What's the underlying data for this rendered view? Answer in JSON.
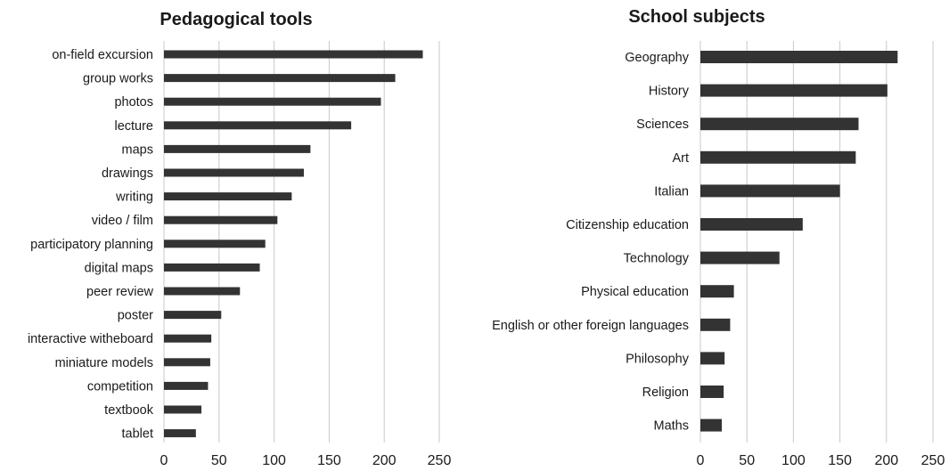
{
  "chart_data": [
    {
      "type": "bar",
      "orientation": "horizontal",
      "title": "Pedagogical tools",
      "categories": [
        "on-field excursion",
        "group works",
        "photos",
        "lecture",
        "maps",
        "drawings",
        "writing",
        "video / film",
        "participatory planning",
        "digital maps",
        "peer review",
        "poster",
        "interactive witheboard",
        "miniature models",
        "competition",
        "textbook",
        "tablet"
      ],
      "values": [
        235,
        210,
        197,
        170,
        133,
        127,
        116,
        103,
        92,
        87,
        69,
        52,
        43,
        42,
        40,
        34,
        29
      ],
      "xlim": [
        0,
        250
      ],
      "xticks": [
        "0",
        "50",
        "100",
        "150",
        "200",
        "250"
      ],
      "grid": true,
      "color": "#333333"
    },
    {
      "type": "bar",
      "orientation": "horizontal",
      "title": "School subjects",
      "categories": [
        "Geography",
        "History",
        "Sciences",
        "Art",
        "Italian",
        "Citizenship education",
        "Technology",
        "Physical education",
        "English or other foreign languages",
        "Philosophy",
        "Religion",
        "Maths"
      ],
      "values": [
        212,
        201,
        170,
        167,
        150,
        110,
        85,
        36,
        32,
        26,
        25,
        23
      ],
      "xlim": [
        0,
        250
      ],
      "xticks": [
        "0",
        "50",
        "100",
        "150",
        "200",
        "250"
      ],
      "grid": true,
      "color": "#333333"
    }
  ]
}
